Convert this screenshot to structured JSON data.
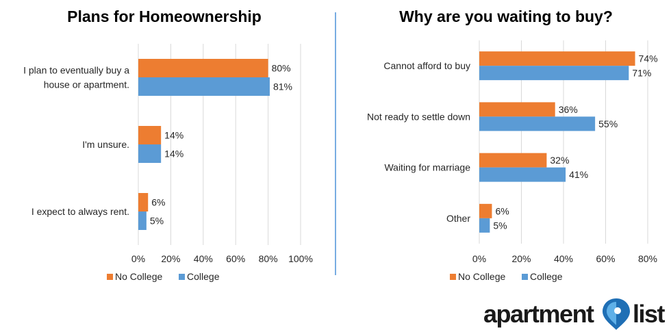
{
  "colors": {
    "no_college": "#ED7D31",
    "college": "#5B9BD5",
    "grid": "#D9D9D9",
    "divider": "#4A90D9",
    "logo_pin_dark": "#1F6FB5",
    "logo_pin_light": "#5FB0E8"
  },
  "legend": [
    "No College",
    "College"
  ],
  "logo": {
    "text_a": "apartment",
    "text_b": "list",
    "icon": "map-pin-icon"
  },
  "chart_data": [
    {
      "type": "bar",
      "orientation": "horizontal",
      "title": "Plans for Homeownership",
      "categories": [
        [
          "I plan to eventually buy a",
          "house or apartment."
        ],
        [
          "I'm unsure."
        ],
        [
          "I expect to always rent."
        ]
      ],
      "series": [
        {
          "name": "No College",
          "values": [
            80,
            14,
            6
          ]
        },
        {
          "name": "College",
          "values": [
            81,
            14,
            5
          ]
        }
      ],
      "xlim": [
        0,
        100
      ],
      "xticks": [
        "0%",
        "20%",
        "40%",
        "60%",
        "80%",
        "100%"
      ],
      "value_suffix": "%",
      "grid": true,
      "legend_position": "bottom-left"
    },
    {
      "type": "bar",
      "orientation": "horizontal",
      "title": "Why are you waiting to buy?",
      "categories": [
        [
          "Cannot afford to buy"
        ],
        [
          "Not ready to settle down"
        ],
        [
          "Waiting for marriage"
        ],
        [
          "Other"
        ]
      ],
      "series": [
        {
          "name": "No College",
          "values": [
            74,
            36,
            32,
            6
          ]
        },
        {
          "name": "College",
          "values": [
            71,
            55,
            41,
            5
          ]
        }
      ],
      "xlim": [
        0,
        80
      ],
      "xticks": [
        "0%",
        "20%",
        "40%",
        "60%",
        "80%"
      ],
      "value_suffix": "%",
      "grid": true,
      "legend_position": "bottom"
    }
  ]
}
